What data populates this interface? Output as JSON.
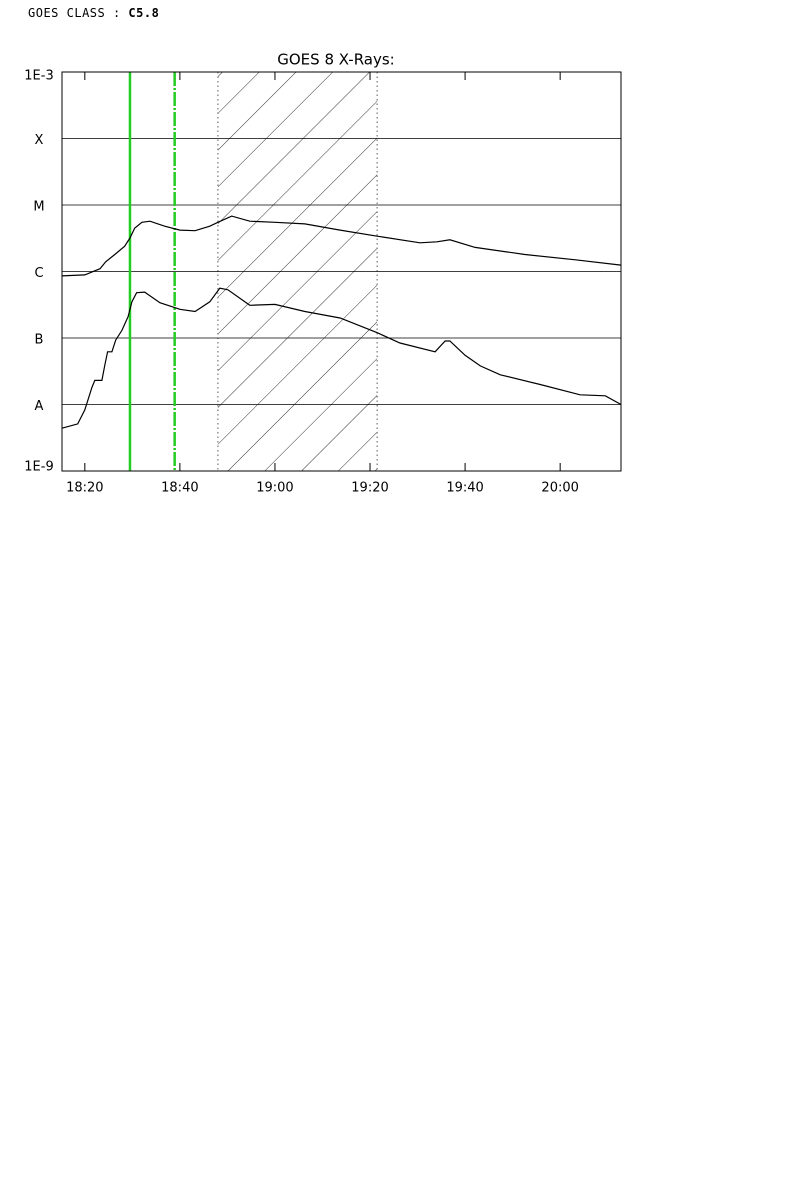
{
  "header": {
    "label": "GOES CLASS : ",
    "value": "C5.8"
  },
  "chart_data": {
    "type": "line",
    "title": "GOES 8 X-Rays:",
    "log_y": true,
    "grid": true,
    "xlim": [
      15.2,
      132.8
    ],
    "xticks": [
      {
        "value": 20,
        "label": "18:20"
      },
      {
        "value": 40,
        "label": "18:40"
      },
      {
        "value": 60,
        "label": "19:00"
      },
      {
        "value": 80,
        "label": "19:20"
      },
      {
        "value": 100,
        "label": "19:40"
      },
      {
        "value": 120,
        "label": "20:00"
      }
    ],
    "ylim": [
      1e-09,
      0.001
    ],
    "yticks": [
      {
        "value": 1e-09,
        "label": "1E-9"
      },
      {
        "value": 1e-08,
        "label": "A"
      },
      {
        "value": 1e-07,
        "label": "B"
      },
      {
        "value": 1e-06,
        "label": "C"
      },
      {
        "value": 1e-05,
        "label": "M"
      },
      {
        "value": 0.0001,
        "label": "X"
      },
      {
        "value": 0.001,
        "label": "1E-3"
      }
    ],
    "vlines": [
      {
        "x": 29.5,
        "color": "#22cc22",
        "dash": false
      },
      {
        "x": 38.9,
        "color": "#22cc22",
        "dash": true
      }
    ],
    "shaded_region": [
      48,
      81.5
    ],
    "series": [
      {
        "color": "#000000",
        "x": [
          15.2,
          20,
          23.2,
          24.4,
          26.3,
          28.4,
          29.5,
          30.5,
          32,
          33.7,
          36.8,
          40,
          43.2,
          46.3,
          48,
          50.9,
          54.7,
          60,
          66.3,
          73.7,
          81.5,
          90.5,
          94.1,
          96.8,
          102.1,
          112.6,
          123.2,
          132.8
        ],
        "values": [
          8.6e-07,
          8.9e-07,
          1.1e-06,
          1.4e-06,
          1.8e-06,
          2.4e-06,
          3.2e-06,
          4.5e-06,
          5.5e-06,
          5.7e-06,
          4.8e-06,
          4.2e-06,
          4.1e-06,
          4.8e-06,
          5.5e-06,
          6.8e-06,
          5.7e-06,
          5.5e-06,
          5.2e-06,
          4.2e-06,
          3.4e-06,
          2.7e-06,
          2.8e-06,
          3e-06,
          2.3e-06,
          1.8e-06,
          1.5e-06,
          1.25e-06
        ]
      },
      {
        "color": "#000000",
        "x": [
          15.2,
          18.5,
          20,
          21.5,
          22.1,
          23.6,
          24.2,
          24.8,
          25.7,
          26.5,
          27.8,
          29.1,
          29.9,
          30.9,
          32.6,
          35.8,
          40,
          43.2,
          46.3,
          48.4,
          50.1,
          54.7,
          60,
          66.3,
          73.7,
          81.5,
          86.3,
          93.7,
          95.8,
          96.8,
          100,
          103.2,
          107.4,
          115.8,
          124.2,
          129.5,
          132.8
        ],
        "values": [
          4.4e-09,
          5.1e-09,
          8.3e-09,
          1.8e-08,
          2.3e-08,
          2.3e-08,
          3.9e-08,
          6.2e-08,
          6.2e-08,
          9.3e-08,
          1.3e-07,
          2.1e-07,
          3.5e-07,
          4.8e-07,
          4.9e-07,
          3.4e-07,
          2.7e-07,
          2.5e-07,
          3.5e-07,
          5.6e-07,
          5.3e-07,
          3.1e-07,
          3.2e-07,
          2.5e-07,
          2e-07,
          1.2e-07,
          8.4e-08,
          6.2e-08,
          9e-08,
          9e-08,
          5.5e-08,
          3.8e-08,
          2.8e-08,
          2e-08,
          1.4e-08,
          1.35e-08,
          1e-08
        ]
      }
    ]
  }
}
